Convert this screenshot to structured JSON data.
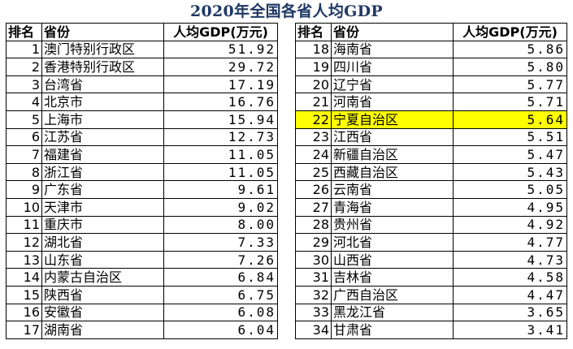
{
  "title": "2020年全国各省人均GDP",
  "headers": {
    "rank": "排名",
    "province": "省份",
    "value": "人均GDP(万元)"
  },
  "highlight_color": "#ffff00",
  "highlight_rank": 22,
  "rows": [
    {
      "rank": "1",
      "province": "澳门特别行政区",
      "value": "51.92"
    },
    {
      "rank": "2",
      "province": "香港特别行政区",
      "value": "29.72"
    },
    {
      "rank": "3",
      "province": "台湾省",
      "value": "17.19"
    },
    {
      "rank": "4",
      "province": "北京市",
      "value": "16.76"
    },
    {
      "rank": "5",
      "province": "上海市",
      "value": "15.94"
    },
    {
      "rank": "6",
      "province": "江苏省",
      "value": "12.73"
    },
    {
      "rank": "7",
      "province": "福建省",
      "value": "11.05"
    },
    {
      "rank": "8",
      "province": "浙江省",
      "value": "11.05"
    },
    {
      "rank": "9",
      "province": "广东省",
      "value": "9.61"
    },
    {
      "rank": "10",
      "province": "天津市",
      "value": "9.02"
    },
    {
      "rank": "11",
      "province": "重庆市",
      "value": "8.00"
    },
    {
      "rank": "12",
      "province": "湖北省",
      "value": "7.33"
    },
    {
      "rank": "13",
      "province": "山东省",
      "value": "7.26"
    },
    {
      "rank": "14",
      "province": "内蒙古自治区",
      "value": "6.84"
    },
    {
      "rank": "15",
      "province": "陕西省",
      "value": "6.75"
    },
    {
      "rank": "16",
      "province": "安徽省",
      "value": "6.08"
    },
    {
      "rank": "17",
      "province": "湖南省",
      "value": "6.04"
    },
    {
      "rank": "18",
      "province": "海南省",
      "value": "5.86"
    },
    {
      "rank": "19",
      "province": "四川省",
      "value": "5.80"
    },
    {
      "rank": "20",
      "province": "辽宁省",
      "value": "5.77"
    },
    {
      "rank": "21",
      "province": "河南省",
      "value": "5.71"
    },
    {
      "rank": "22",
      "province": "宁夏自治区",
      "value": "5.64"
    },
    {
      "rank": "23",
      "province": "江西省",
      "value": "5.51"
    },
    {
      "rank": "24",
      "province": "新疆自治区",
      "value": "5.47"
    },
    {
      "rank": "25",
      "province": "西藏自治区",
      "value": "5.43"
    },
    {
      "rank": "26",
      "province": "云南省",
      "value": "5.05"
    },
    {
      "rank": "27",
      "province": "青海省",
      "value": "4.95"
    },
    {
      "rank": "28",
      "province": "贵州省",
      "value": "4.92"
    },
    {
      "rank": "29",
      "province": "河北省",
      "value": "4.77"
    },
    {
      "rank": "30",
      "province": "山西省",
      "value": "4.73"
    },
    {
      "rank": "31",
      "province": "吉林省",
      "value": "4.58"
    },
    {
      "rank": "32",
      "province": "广西自治区",
      "value": "4.47"
    },
    {
      "rank": "33",
      "province": "黑龙江省",
      "value": "3.65"
    },
    {
      "rank": "34",
      "province": "甘肃省",
      "value": "3.41"
    }
  ]
}
